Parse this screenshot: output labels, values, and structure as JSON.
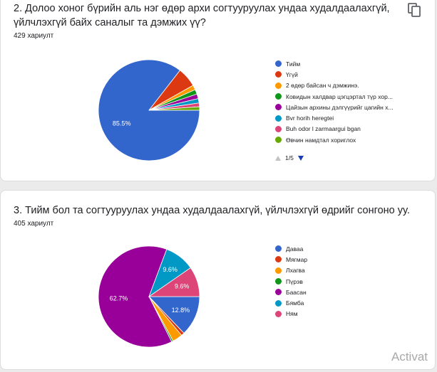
{
  "question1": {
    "title": "2. Долоо хоног бүрийн аль нэг өдөр архи согтууруулах ундаа худалдаалахгүй, үйлчлэхгүй байх саналыг та дэмжих үү?",
    "response_count": "429 хариулт",
    "chart_data": {
      "type": "pie",
      "categories": [
        "Тийм",
        "Үгүй",
        "2 өдөр байсан ч дэмжинэ.",
        "Ковидын халдвар цэгцэртал түр хор...",
        "Цайзын архины дэлгүүрийг цагийн х...",
        "Bvr horih heregtei",
        "Buh odor l zarmaargui bgan",
        "Өвчин намдтал хориглох"
      ],
      "values": [
        85.5,
        6.3,
        1.5,
        1.5,
        1.5,
        1.4,
        1.2,
        1.1
      ],
      "colors": [
        "#3366cc",
        "#dc3912",
        "#ff9900",
        "#109618",
        "#990099",
        "#0099c6",
        "#dd4477",
        "#66aa00"
      ],
      "data_labels": [
        "85.5%",
        "",
        "",
        "",
        "",
        "",
        "",
        ""
      ]
    },
    "pager": {
      "text": "1/5"
    }
  },
  "question2": {
    "title": "3. Тийм бол та согтууруулах ундаа худалдаалахгүй, үйлчлэхгүй өдрийг сонгоно уу.",
    "response_count": "405 хариулт",
    "chart_data": {
      "type": "pie",
      "categories": [
        "Даваа",
        "Мягмар",
        "Лхагва",
        "Пүрэв",
        "Баасан",
        "Бямба",
        "Ням"
      ],
      "values": [
        12.8,
        1.0,
        3.2,
        0.5,
        62.7,
        9.6,
        9.6
      ],
      "colors": [
        "#3366cc",
        "#dc3912",
        "#ff9900",
        "#109618",
        "#990099",
        "#0099c6",
        "#dd4477"
      ],
      "data_labels": [
        "12.8%",
        "",
        "",
        "",
        "62.7%",
        "9.6%",
        "9.6%"
      ]
    }
  },
  "watermark": "Activat"
}
